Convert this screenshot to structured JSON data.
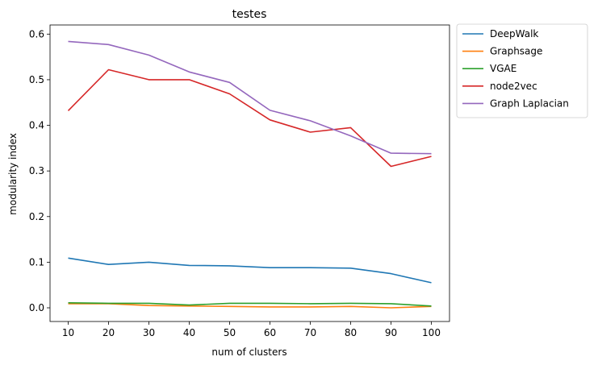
{
  "chart_data": {
    "type": "line",
    "title": "testes",
    "xlabel": "num of clusters",
    "ylabel": "modularity index",
    "x": [
      10,
      20,
      30,
      40,
      50,
      60,
      70,
      80,
      90,
      100
    ],
    "xticks": [
      "10",
      "20",
      "30",
      "40",
      "50",
      "60",
      "70",
      "80",
      "90",
      "100"
    ],
    "yticks": [
      "0.0",
      "0.1",
      "0.2",
      "0.3",
      "0.4",
      "0.5",
      "0.6"
    ],
    "ylim": [
      -0.03,
      0.62
    ],
    "xlim": [
      5.5,
      104.5
    ],
    "grid": false,
    "legend_position": "outside-upper-right",
    "series": [
      {
        "name": "DeepWalk",
        "color": "#1f77b4",
        "values": [
          0.109,
          0.095,
          0.1,
          0.093,
          0.092,
          0.088,
          0.088,
          0.087,
          0.075,
          0.055
        ]
      },
      {
        "name": "Graphsage",
        "color": "#ff7f0e",
        "values": [
          0.009,
          0.009,
          0.005,
          0.004,
          0.003,
          0.002,
          0.002,
          0.003,
          0.0,
          0.003
        ]
      },
      {
        "name": "VGAE",
        "color": "#2ca02c",
        "values": [
          0.011,
          0.01,
          0.01,
          0.006,
          0.01,
          0.01,
          0.009,
          0.01,
          0.009,
          0.004
        ]
      },
      {
        "name": "node2vec",
        "color": "#d62728",
        "values": [
          0.432,
          0.522,
          0.5,
          0.5,
          0.469,
          0.412,
          0.385,
          0.395,
          0.31,
          0.332
        ]
      },
      {
        "name": "Graph Laplacian",
        "color": "#9467bd",
        "values": [
          0.584,
          0.577,
          0.554,
          0.517,
          0.494,
          0.433,
          0.41,
          0.377,
          0.339,
          0.338
        ]
      }
    ]
  }
}
